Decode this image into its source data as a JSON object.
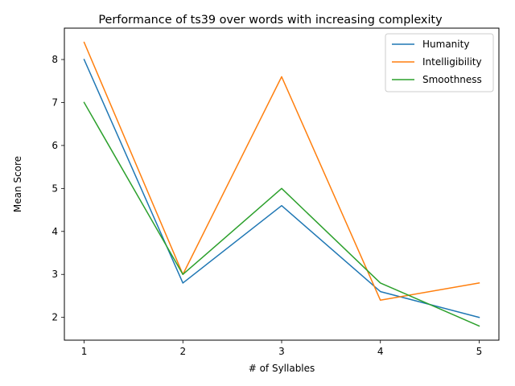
{
  "chart_data": {
    "type": "line",
    "title": "Performance of ts39 over words with increasing complexity",
    "xlabel": "# of Syllables",
    "ylabel": "Mean Score",
    "x": [
      1,
      2,
      3,
      4,
      5
    ],
    "xticks": [
      "1",
      "2",
      "3",
      "4",
      "5"
    ],
    "yticks": [
      "2",
      "3",
      "4",
      "5",
      "6",
      "7",
      "8"
    ],
    "xlim": [
      0.8,
      5.2
    ],
    "ylim": [
      1.47,
      8.73
    ],
    "grid": false,
    "legend_position": "top-right",
    "series": [
      {
        "name": "Humanity",
        "color": "#1f77b4",
        "values": [
          8.0,
          2.8,
          4.6,
          2.6,
          2.0
        ]
      },
      {
        "name": "Intelligibility",
        "color": "#ff7f0e",
        "values": [
          8.4,
          3.0,
          7.6,
          2.4,
          2.8
        ]
      },
      {
        "name": "Smoothness",
        "color": "#2ca02c",
        "values": [
          7.0,
          3.0,
          5.0,
          2.8,
          1.8
        ]
      }
    ]
  }
}
